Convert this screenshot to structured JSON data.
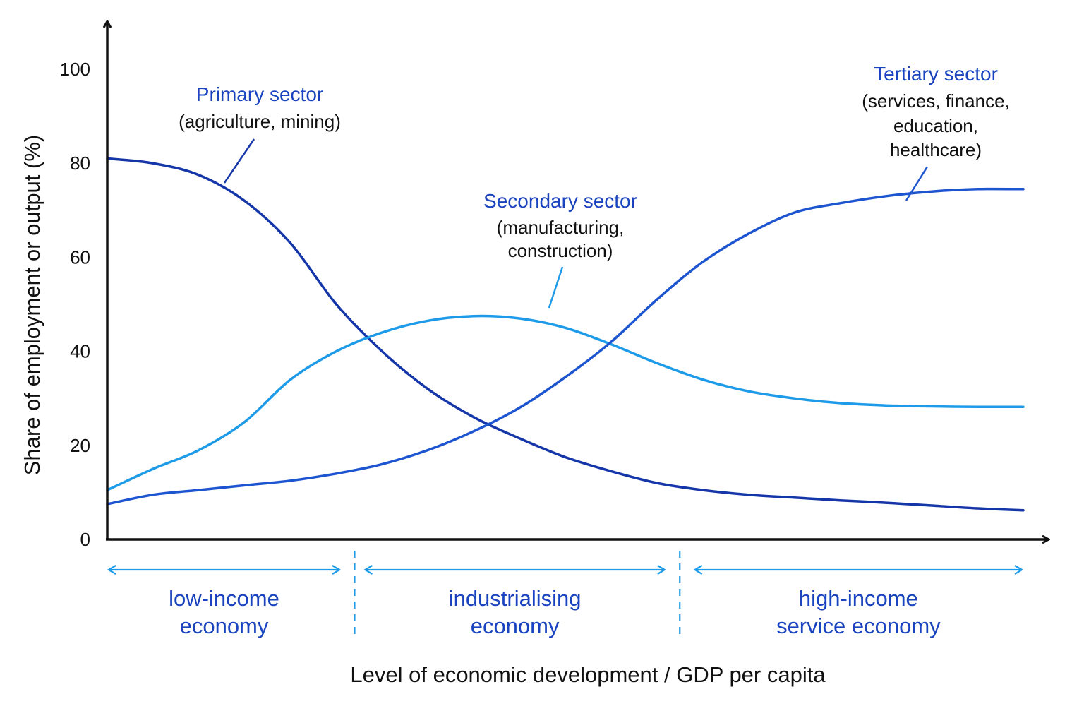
{
  "chart_data": {
    "type": "line",
    "xlabel": "Level of economic development / GDP per capita",
    "ylabel": "Share of employment or output (%)",
    "ylim": [
      0,
      100
    ],
    "xlim": [
      0,
      100
    ],
    "yticks": [
      "0",
      "20",
      "40",
      "60",
      "80",
      "100"
    ],
    "grid": false,
    "legend": "none (curves labelled directly)",
    "series": [
      {
        "name": "Primary sector",
        "note": [
          "(agriculture, mining)"
        ],
        "color": "#1536a8",
        "x": [
          0,
          5,
          10,
          15,
          20,
          25,
          30,
          35,
          40,
          45,
          50,
          55,
          60,
          65,
          70,
          75,
          80,
          85,
          90,
          95,
          100
        ],
        "values": [
          81,
          80,
          77.5,
          72,
          63,
          50,
          40,
          32,
          26,
          21.5,
          17.5,
          14.5,
          12,
          10.5,
          9.5,
          8.9,
          8.3,
          7.8,
          7.2,
          6.6,
          6.2
        ]
      },
      {
        "name": "Secondary sector",
        "note": [
          "(manufacturing,",
          "construction)"
        ],
        "color": "#1e9be8",
        "x": [
          0,
          5,
          10,
          15,
          20,
          25,
          30,
          35,
          40,
          45,
          50,
          55,
          60,
          65,
          70,
          75,
          80,
          85,
          90,
          95,
          100
        ],
        "values": [
          10.5,
          15,
          19,
          25,
          34,
          40,
          44,
          46.5,
          47.5,
          47,
          45,
          41.5,
          37.5,
          34,
          31.5,
          30,
          29,
          28.5,
          28.3,
          28.2,
          28.2
        ]
      },
      {
        "name": "Tertiary sector",
        "note": [
          "(services, finance,",
          "education,",
          "healthcare)"
        ],
        "color": "#1d54cf",
        "x": [
          0,
          5,
          10,
          15,
          20,
          25,
          30,
          35,
          40,
          45,
          50,
          55,
          60,
          65,
          70,
          75,
          80,
          85,
          90,
          95,
          100
        ],
        "values": [
          7.5,
          9.5,
          10.5,
          11.5,
          12.5,
          14,
          16,
          19,
          23,
          28,
          34.5,
          42,
          51,
          59,
          65,
          69.5,
          71.5,
          73,
          74,
          74.5,
          74.5
        ]
      }
    ],
    "stages": [
      {
        "lines": [
          "low-income",
          "economy"
        ],
        "x_start": 0,
        "x_end": 25.5
      },
      {
        "lines": [
          "industrialising",
          "economy"
        ],
        "x_start": 28,
        "x_end": 61
      },
      {
        "lines": [
          "high-income",
          "service economy"
        ],
        "x_start": 64,
        "x_end": 100
      }
    ],
    "stage_boundaries": [
      27,
      62.5
    ],
    "stage_color": "#1e9be8"
  }
}
